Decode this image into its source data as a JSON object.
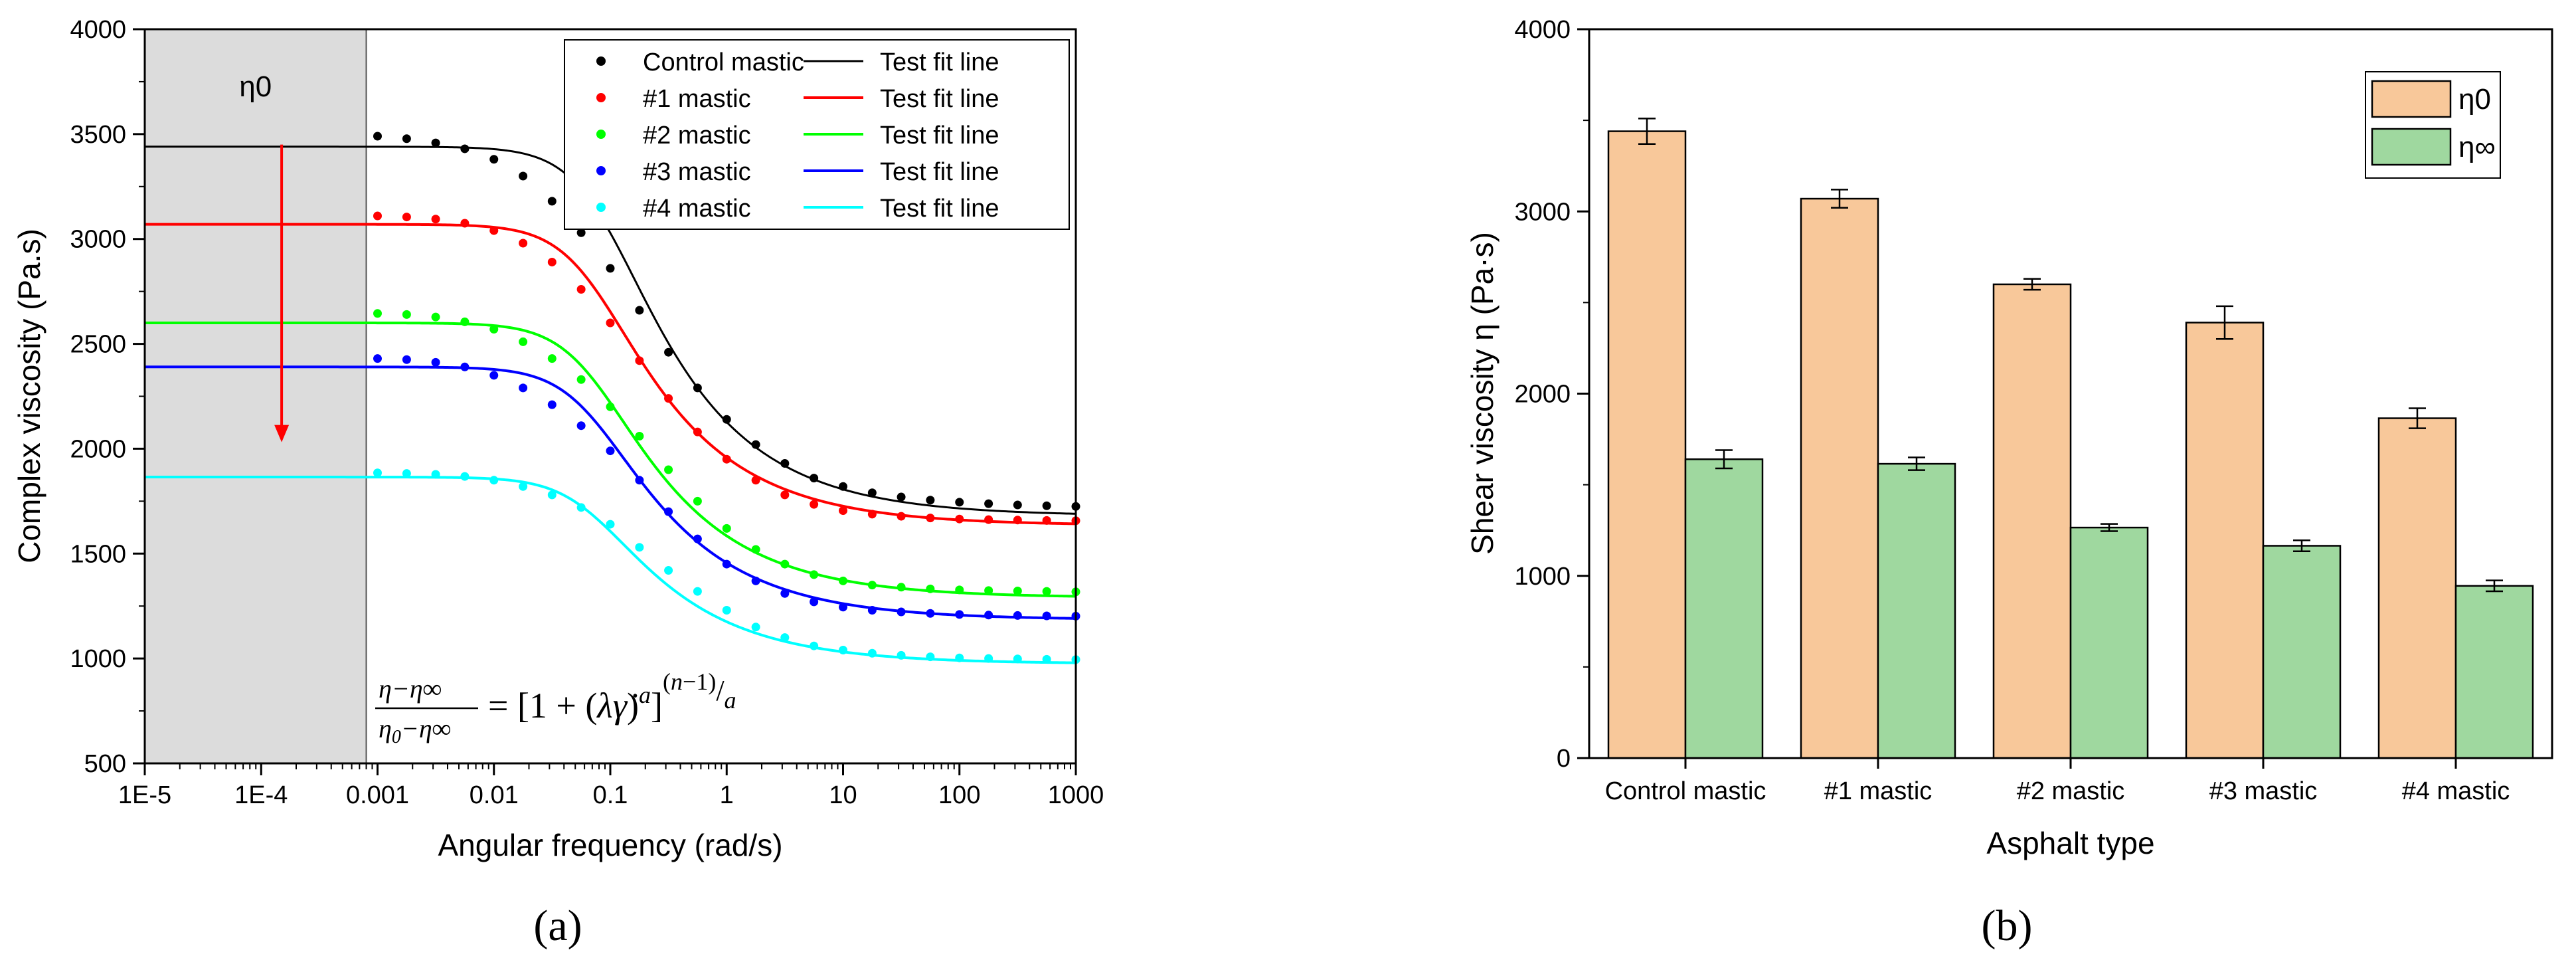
{
  "chart_data": [
    {
      "panel_label": "(a)",
      "type": "scatter",
      "xscale": "log",
      "xlabel": "Angular frequency (rad/s)",
      "ylabel": "Complex viscosity (Pa.s)",
      "xlim": [
        1e-05,
        1000
      ],
      "ylim": [
        500,
        4000
      ],
      "xticks": [
        1e-05,
        0.0001,
        0.001,
        0.01,
        0.1,
        1,
        10,
        100,
        1000
      ],
      "xtick_labels": [
        "1E-5",
        "1E-4",
        "0.001",
        "0.01",
        "0.1",
        "1",
        "10",
        "100",
        "1000"
      ],
      "yticks": [
        500,
        1000,
        1500,
        2000,
        2500,
        3000,
        3500,
        4000
      ],
      "ytick_labels": [
        "500",
        "1000",
        "1500",
        "2000",
        "2500",
        "3000",
        "3500",
        "4000"
      ],
      "shaded_region": {
        "x_from": 1e-05,
        "x_to": 0.0008,
        "label": "η0",
        "color": "#dcdcdc"
      },
      "arrow": {
        "x": 0.00015,
        "y_from": 3450,
        "y_to": 2050,
        "color": "#ff0000"
      },
      "equation_text": "(η−η∞)/(η0−η∞) = [1 + (λγ̇)^a]^((n−1)/a)",
      "fit_label": "Test fit line",
      "data_x": [
        0.001,
        0.00178,
        0.00316,
        0.00562,
        0.01,
        0.0178,
        0.0316,
        0.0562,
        0.1,
        0.178,
        0.316,
        0.562,
        1,
        1.78,
        3.16,
        5.62,
        10,
        17.8,
        31.6,
        56.2,
        100,
        178,
        316,
        562,
        1000
      ],
      "series": [
        {
          "name": "Control mastic",
          "color": "#000000",
          "eta0": 3440,
          "eta_inf": 1680,
          "lambda": 12,
          "a": 1.8,
          "n": 0.45,
          "y": [
            3490,
            3478,
            3458,
            3430,
            3380,
            3300,
            3180,
            3030,
            2860,
            2660,
            2460,
            2290,
            2140,
            2020,
            1930,
            1860,
            1820,
            1790,
            1770,
            1755,
            1745,
            1738,
            1732,
            1728,
            1725
          ]
        },
        {
          "name": "#1 mastic",
          "color": "#ff0000",
          "eta0": 3070,
          "eta_inf": 1635,
          "lambda": 15,
          "a": 1.8,
          "n": 0.45,
          "y": [
            3110,
            3105,
            3095,
            3075,
            3040,
            2980,
            2890,
            2760,
            2600,
            2420,
            2240,
            2080,
            1950,
            1850,
            1780,
            1735,
            1705,
            1688,
            1678,
            1670,
            1665,
            1662,
            1660,
            1658,
            1657
          ]
        },
        {
          "name": "#2 mastic",
          "color": "#00ff00",
          "eta0": 2600,
          "eta_inf": 1290,
          "lambda": 15,
          "a": 1.8,
          "n": 0.45,
          "y": [
            2645,
            2640,
            2628,
            2605,
            2570,
            2510,
            2430,
            2330,
            2200,
            2060,
            1900,
            1750,
            1620,
            1520,
            1450,
            1400,
            1370,
            1350,
            1340,
            1332,
            1327,
            1324,
            1322,
            1320,
            1318
          ]
        },
        {
          "name": "#3 mastic",
          "color": "#0000ff",
          "eta0": 2390,
          "eta_inf": 1185,
          "lambda": 15,
          "a": 1.8,
          "n": 0.45,
          "y": [
            2430,
            2425,
            2412,
            2390,
            2350,
            2290,
            2210,
            2110,
            1990,
            1850,
            1700,
            1570,
            1450,
            1370,
            1310,
            1270,
            1245,
            1230,
            1222,
            1215,
            1210,
            1207,
            1205,
            1203,
            1202
          ]
        },
        {
          "name": "#4 mastic",
          "color": "#00ffff",
          "eta0": 1865,
          "eta_inf": 975,
          "lambda": 15,
          "a": 1.8,
          "n": 0.45,
          "y": [
            1885,
            1882,
            1878,
            1868,
            1850,
            1820,
            1780,
            1720,
            1640,
            1530,
            1420,
            1320,
            1230,
            1150,
            1100,
            1060,
            1040,
            1025,
            1015,
            1008,
            1003,
            1000,
            998,
            996,
            995
          ]
        }
      ]
    },
    {
      "panel_label": "(b)",
      "type": "bar",
      "xlabel": "Asphalt type",
      "ylabel": "Shear viscosity η (Pa·s)",
      "ylim": [
        0,
        4000
      ],
      "yticks": [
        0,
        1000,
        2000,
        3000,
        4000
      ],
      "ytick_labels": [
        "0",
        "1000",
        "2000",
        "3000",
        "4000"
      ],
      "categories": [
        "Control mastic",
        "#1 mastic",
        "#2 mastic",
        "#3 mastic",
        "#4 mastic"
      ],
      "series": [
        {
          "name": "η0",
          "color": "#f8c89a",
          "values": [
            3440,
            3070,
            2600,
            2390,
            1865
          ],
          "errors": [
            70,
            50,
            30,
            90,
            55
          ]
        },
        {
          "name": "η∞",
          "color": "#9fd89f",
          "values": [
            1640,
            1615,
            1265,
            1165,
            945
          ],
          "errors": [
            50,
            35,
            20,
            30,
            30
          ]
        }
      ]
    }
  ]
}
